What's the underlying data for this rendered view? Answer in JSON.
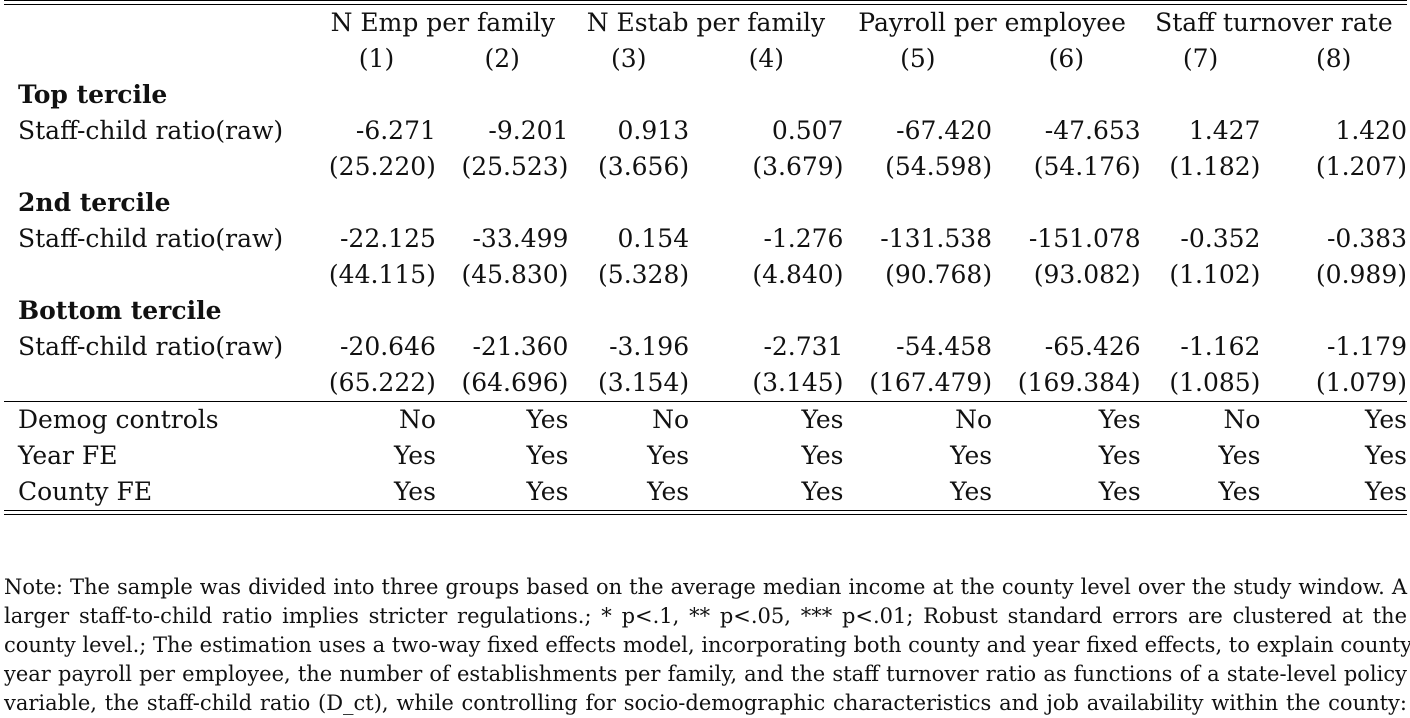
{
  "column_groups": [
    {
      "label": "N Emp per family",
      "span": 2
    },
    {
      "label": "N Estab per family",
      "span": 2
    },
    {
      "label": "Payroll per employee",
      "span": 2
    },
    {
      "label": "Staff turnover rate",
      "span": 2
    }
  ],
  "column_numbers": [
    "(1)",
    "(2)",
    "(3)",
    "(4)",
    "(5)",
    "(6)",
    "(7)",
    "(8)"
  ],
  "sections": [
    {
      "title": "Top tercile",
      "row_label": "Staff-child ratio(raw)",
      "coefficients": [
        "-6.271",
        "-9.201",
        "0.913",
        "0.507",
        "-67.420",
        "-47.653",
        "1.427",
        "1.420"
      ],
      "std_errors": [
        "(25.220)",
        "(25.523)",
        "(3.656)",
        "(3.679)",
        "(54.598)",
        "(54.176)",
        "(1.182)",
        "(1.207)"
      ]
    },
    {
      "title": "2nd tercile",
      "row_label": "Staff-child ratio(raw)",
      "coefficients": [
        "-22.125",
        "-33.499",
        "0.154",
        "-1.276",
        "-131.538",
        "-151.078",
        "-0.352",
        "-0.383"
      ],
      "std_errors": [
        "(44.115)",
        "(45.830)",
        "(5.328)",
        "(4.840)",
        "(90.768)",
        "(93.082)",
        "(1.102)",
        "(0.989)"
      ]
    },
    {
      "title": "Bottom tercile",
      "row_label": "Staff-child ratio(raw)",
      "coefficients": [
        "-20.646",
        "-21.360",
        "-3.196",
        "-2.731",
        "-54.458",
        "-65.426",
        "-1.162",
        "-1.179"
      ],
      "std_errors": [
        "(65.222)",
        "(64.696)",
        "(3.154)",
        "(3.145)",
        "(167.479)",
        "(169.384)",
        "(1.085)",
        "(1.079)"
      ]
    }
  ],
  "controls": [
    {
      "label": "Demog controls",
      "values": [
        "No",
        "Yes",
        "No",
        "Yes",
        "No",
        "Yes",
        "No",
        "Yes"
      ]
    },
    {
      "label": "Year FE",
      "values": [
        "Yes",
        "Yes",
        "Yes",
        "Yes",
        "Yes",
        "Yes",
        "Yes",
        "Yes"
      ]
    },
    {
      "label": "County FE",
      "values": [
        "Yes",
        "Yes",
        "Yes",
        "Yes",
        "Yes",
        "Yes",
        "Yes",
        "Yes"
      ]
    }
  ],
  "note": {
    "lines": [
      "Note: The sample was divided into three groups based on the average median income at the county level over the study window. A",
      "larger staff-to-child ratio implies stricter regulations.; * p<.1, ** p<.05, *** p<.01; Robust standard errors are clustered at the",
      "county level.; The estimation uses a two-way fixed effects model, incorporating both county and year fixed effects, to explain county-",
      "year payroll per employee, the number of establishments per family, and the staff turnover ratio as functions of a state-level policy",
      "variable, the staff-child ratio (D_ct), while controlling for socio-demographic characteristics and job availability within the county:"
    ]
  }
}
